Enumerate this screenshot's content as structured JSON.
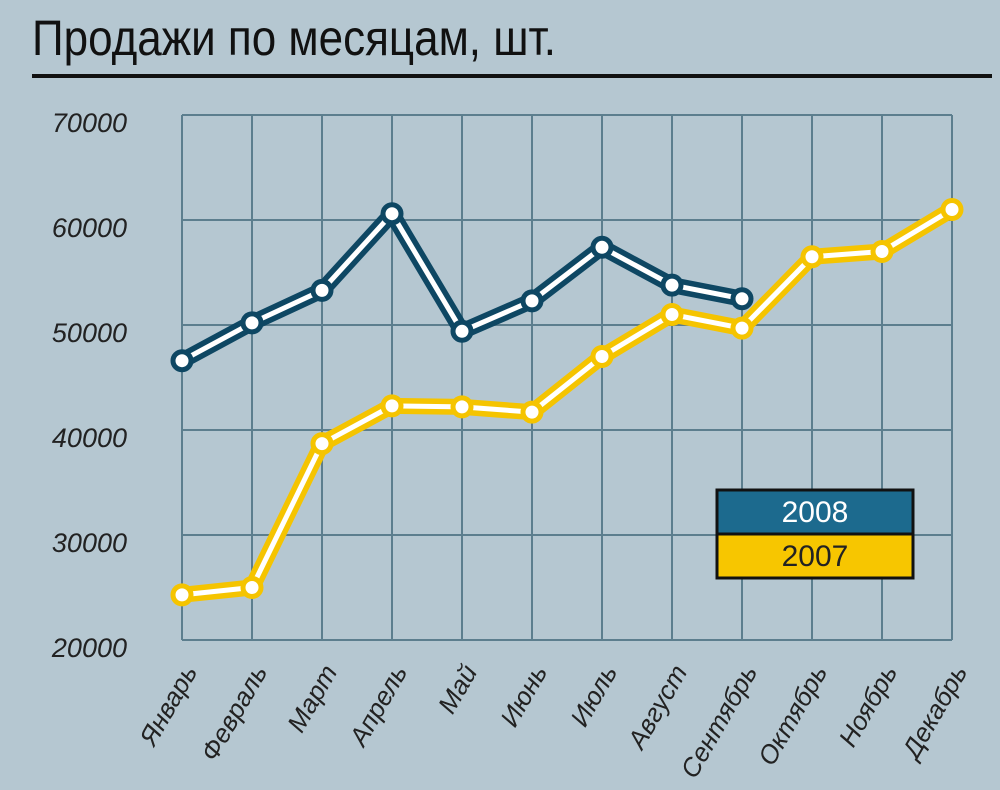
{
  "chart_data": {
    "type": "line",
    "title": "Продажи по месяцам, шт.",
    "categories": [
      "Январь",
      "Февраль",
      "Март",
      "Апрель",
      "Май",
      "Июнь",
      "Июль",
      "Август",
      "Сентябрь",
      "Октябрь",
      "Ноябрь",
      "Декабрь"
    ],
    "series": [
      {
        "name": "2008",
        "color": "#0e4763",
        "values": [
          46600,
          50200,
          53300,
          60600,
          49400,
          52300,
          57400,
          53800,
          52500,
          null,
          null,
          null
        ]
      },
      {
        "name": "2007",
        "color": "#f5c400",
        "values": [
          24300,
          25000,
          38700,
          42300,
          42200,
          41700,
          47000,
          51000,
          49700,
          56500,
          57000,
          61000
        ]
      }
    ],
    "ylim": [
      20000,
      70000
    ],
    "yticks": [
      20000,
      30000,
      40000,
      50000,
      60000,
      70000
    ],
    "grid": true
  }
}
